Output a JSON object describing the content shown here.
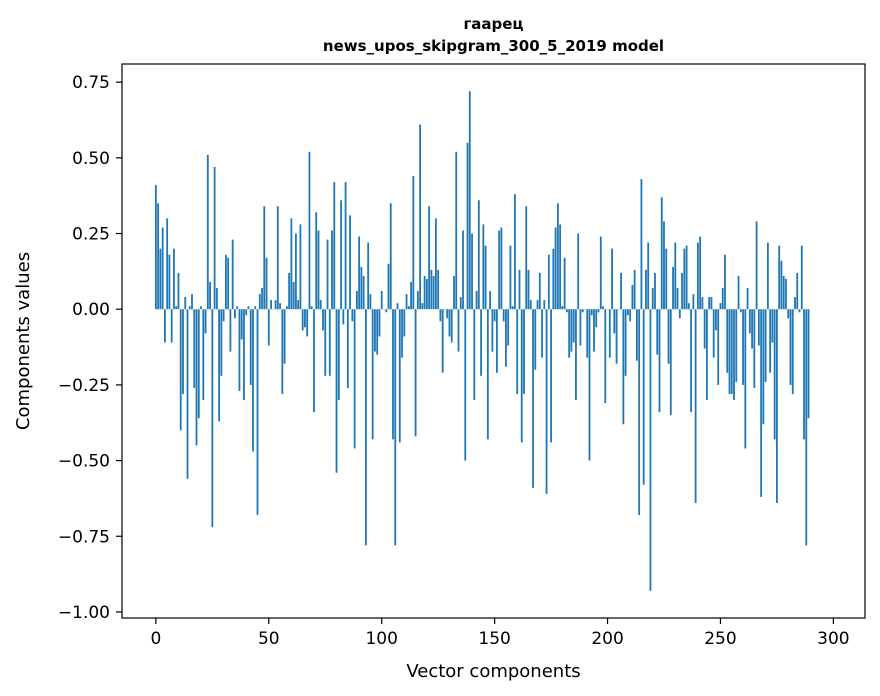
{
  "chart_data": {
    "type": "bar",
    "title": "гаарец",
    "subtitle": "news_upos_skipgram_300_5_2019 model",
    "xlabel": "Vector components",
    "ylabel": "Components values",
    "xlim": [
      -15,
      314
    ],
    "ylim": [
      -1.02,
      0.81
    ],
    "xticks": [
      0,
      50,
      100,
      150,
      200,
      250,
      300
    ],
    "xtick_labels": [
      "0",
      "50",
      "100",
      "150",
      "200",
      "250",
      "300"
    ],
    "yticks": [
      0.75,
      0.5,
      0.25,
      0.0,
      -0.25,
      -0.5,
      -0.75,
      -1.0
    ],
    "ytick_labels": [
      "0.75",
      "0.50",
      "0.25",
      "0.00",
      "−0.25",
      "−0.50",
      "−0.75",
      "−1.00"
    ],
    "bar_color": "#1f77b4",
    "grid": false,
    "values": [
      0.41,
      0.35,
      0.2,
      0.27,
      -0.11,
      0.3,
      0.18,
      -0.11,
      0.2,
      0.01,
      0.12,
      -0.4,
      -0.28,
      0.04,
      -0.56,
      0.01,
      0.05,
      -0.26,
      -0.45,
      -0.36,
      0.01,
      -0.3,
      -0.08,
      0.51,
      0.09,
      -0.72,
      0.47,
      0.07,
      -0.37,
      -0.22,
      -0.04,
      0.18,
      0.17,
      -0.14,
      0.23,
      -0.03,
      0.01,
      -0.27,
      -0.1,
      -0.3,
      -0.02,
      0.01,
      -0.25,
      -0.47,
      0.01,
      -0.68,
      0.05,
      0.07,
      0.34,
      0.17,
      -0.12,
      0.03,
      0.0,
      0.03,
      0.34,
      0.02,
      -0.28,
      -0.18,
      0.01,
      0.12,
      0.3,
      0.09,
      0.25,
      0.03,
      0.28,
      -0.07,
      -0.06,
      -0.09,
      0.52,
      0.01,
      -0.34,
      0.32,
      0.26,
      0.03,
      -0.07,
      -0.22,
      0.23,
      -0.22,
      0.26,
      0.42,
      -0.54,
      -0.3,
      0.36,
      -0.05,
      0.42,
      -0.26,
      0.31,
      -0.04,
      -0.46,
      0.06,
      0.24,
      0.14,
      0.11,
      -0.78,
      0.22,
      0.05,
      -0.43,
      -0.14,
      -0.15,
      -0.09,
      0.06,
      0.0,
      -0.01,
      0.15,
      0.35,
      -0.43,
      -0.78,
      0.02,
      -0.44,
      -0.16,
      -0.09,
      0.05,
      0.01,
      0.09,
      0.44,
      -0.42,
      0.06,
      0.61,
      0.02,
      0.11,
      0.1,
      0.34,
      0.13,
      0.11,
      0.3,
      0.13,
      -0.04,
      -0.21,
      0.0,
      -0.03,
      -0.09,
      -0.11,
      0.11,
      0.52,
      -0.14,
      0.04,
      0.26,
      -0.5,
      0.55,
      0.72,
      0.25,
      -0.3,
      0.06,
      0.36,
      -0.22,
      0.28,
      0.21,
      -0.43,
      0.06,
      -0.14,
      -0.04,
      -0.21,
      0.26,
      0.27,
      -0.04,
      -0.19,
      -0.12,
      0.21,
      0.01,
      0.38,
      -0.28,
      0.13,
      -0.44,
      -0.28,
      0.34,
      0.13,
      0.03,
      -0.59,
      -0.2,
      0.03,
      0.12,
      -0.16,
      0.03,
      -0.61,
      0.18,
      -0.44,
      0.2,
      0.27,
      0.35,
      0.28,
      0.01,
      0.17,
      -0.01,
      -0.16,
      -0.14,
      -0.11,
      -0.3,
      0.25,
      -0.12,
      -0.01,
      0.0,
      -0.16,
      -0.5,
      -0.02,
      -0.14,
      -0.06,
      -0.01,
      0.24,
      0.01,
      -0.31,
      0.0,
      -0.16,
      0.2,
      -0.08,
      -0.18,
      0.0,
      0.12,
      -0.38,
      -0.22,
      -0.02,
      -0.04,
      0.08,
      0.13,
      -0.17,
      -0.68,
      0.43,
      -0.58,
      0.13,
      0.22,
      -0.93,
      0.07,
      0.12,
      -0.15,
      -0.34,
      0.37,
      0.29,
      0.2,
      -0.18,
      -0.35,
      0.14,
      0.22,
      0.07,
      -0.03,
      0.12,
      0.2,
      0.21,
      0.02,
      -0.34,
      0.05,
      -0.64,
      0.22,
      0.24,
      0.04,
      -0.13,
      -0.3,
      0.04,
      0.04,
      -0.16,
      -0.07,
      -0.25,
      0.02,
      0.07,
      0.18,
      -0.21,
      -0.28,
      -0.28,
      -0.3,
      -0.24,
      0.11,
      -0.01,
      -0.25,
      -0.46,
      0.07,
      -0.08,
      -0.13,
      -0.26,
      0.29,
      -0.12,
      -0.62,
      -0.38,
      -0.24,
      0.22,
      -0.21,
      -0.11,
      -0.43,
      -0.64,
      0.21,
      0.16,
      0.11,
      0.1,
      -0.03,
      -0.25,
      -0.28,
      0.04,
      0.12,
      -0.01,
      0.21,
      -0.43,
      -0.78,
      -0.36
    ]
  }
}
